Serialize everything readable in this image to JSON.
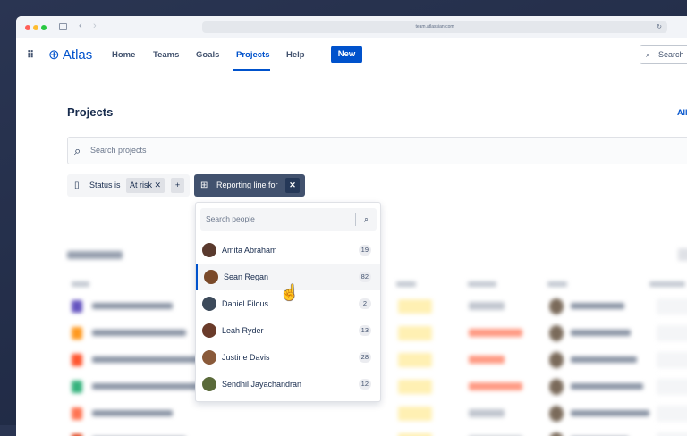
{
  "browser": {
    "url": "team.atlassian.com"
  },
  "nav": {
    "logo": "Atlas",
    "items": [
      "Home",
      "Teams",
      "Goals",
      "Projects",
      "Help"
    ],
    "active": "Projects",
    "new_label": "New",
    "search_label": "Search"
  },
  "page": {
    "title": "Projects",
    "all_link": "All",
    "search_placeholder": "Search projects"
  },
  "filters": {
    "status_label": "Status is",
    "status_value": "At risk",
    "add": "+",
    "reporting_label": "Reporting line for",
    "close": "✕"
  },
  "dropdown": {
    "search_placeholder": "Search people",
    "people": [
      {
        "name": "Amita Abraham",
        "count": "19",
        "color": "#5a3a2e"
      },
      {
        "name": "Sean Regan",
        "count": "82",
        "color": "#7a4a2a",
        "selected": true
      },
      {
        "name": "Daniel Filous",
        "count": "2",
        "color": "#3c4a5a"
      },
      {
        "name": "Leah Ryder",
        "count": "13",
        "color": "#6a3b2a"
      },
      {
        "name": "Justine Davis",
        "count": "28",
        "color": "#8a5a3a"
      },
      {
        "name": "Sendhil Jayachandran",
        "count": "12",
        "color": "#5a6a3a"
      }
    ]
  },
  "colors": {
    "accent": "#0052cc",
    "chip_dark": "#42526e",
    "status_yellow": "#fff0b3"
  }
}
